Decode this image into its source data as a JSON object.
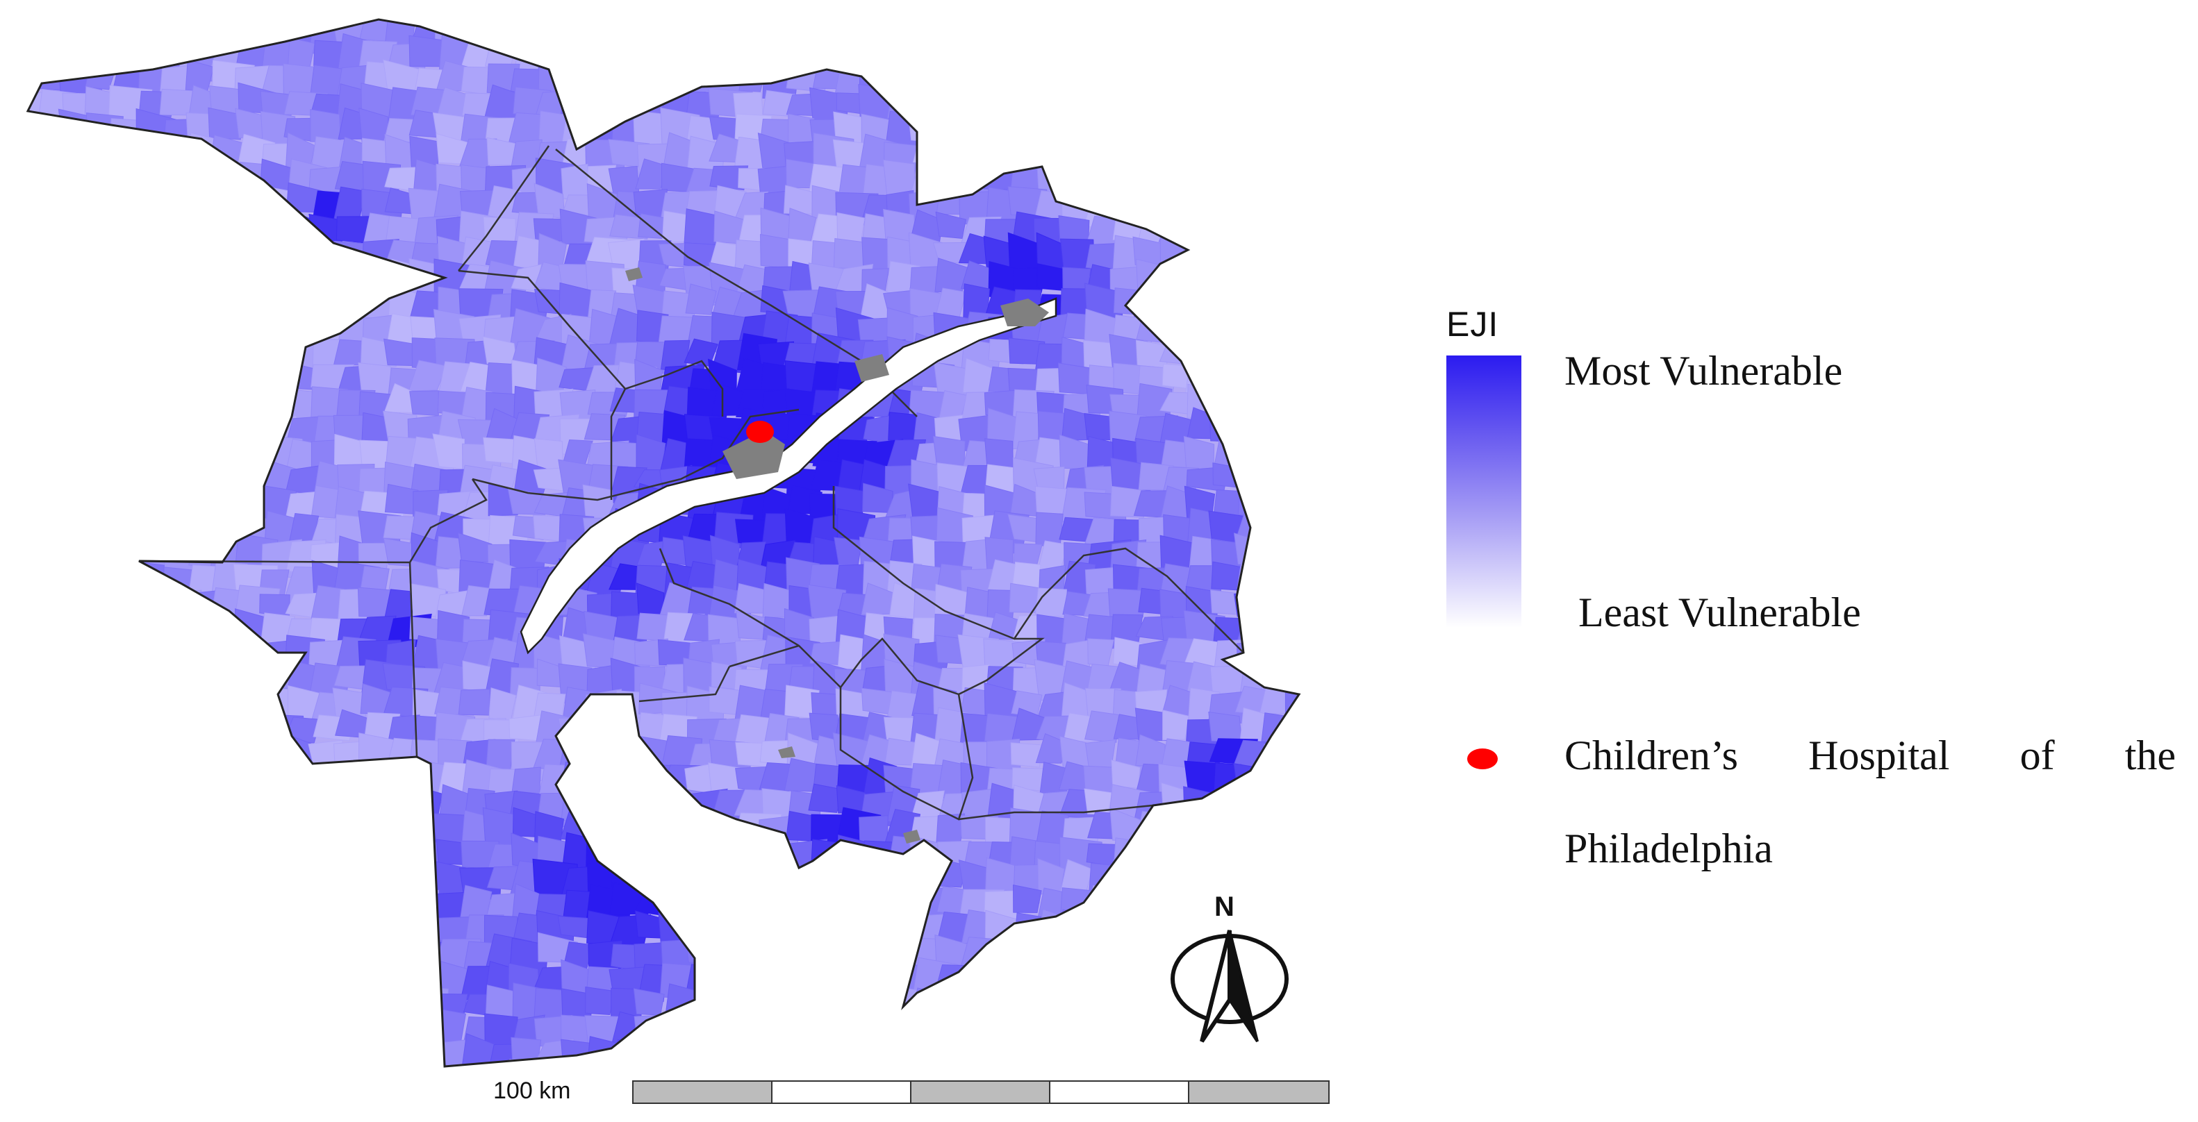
{
  "map": {
    "colors": {
      "most_vulnerable": "#2b1bf0",
      "least_vulnerable": "#ffffff",
      "no_data": "#808080",
      "boundary": "#333333",
      "hospital": "#ff0000"
    }
  },
  "legend": {
    "title": "EJI",
    "high_label": "Most Vulnerable",
    "low_label": "Least Vulnerable",
    "hospital_label_words": [
      "Children’s",
      "Hospital",
      "of",
      "the"
    ],
    "hospital_label_line2": "Philadelphia"
  },
  "scale": {
    "label": "100 km",
    "segments": [
      "dark",
      "light",
      "dark",
      "light",
      "dark"
    ]
  },
  "north_arrow": {
    "letter": "N",
    "icon": "north-arrow-icon"
  }
}
